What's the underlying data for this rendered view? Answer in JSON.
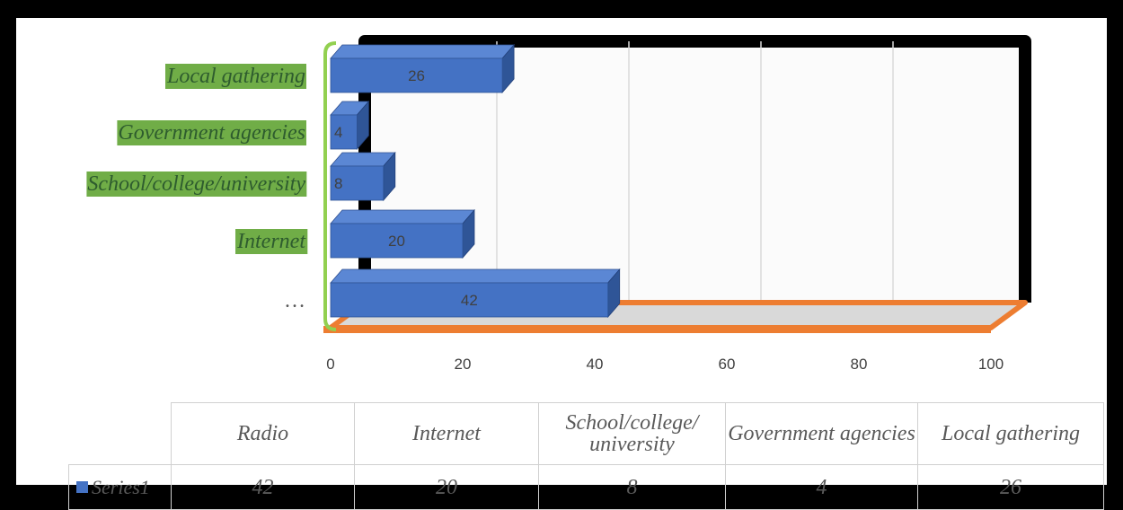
{
  "chart_data": {
    "type": "bar",
    "orientation": "horizontal",
    "title": "",
    "categories": [
      "Radio",
      "Internet",
      "School/college/ university",
      "Government agencies",
      "Local gathering"
    ],
    "axis_categories": [
      "…",
      "Internet",
      "School/college/university",
      "Government agencies",
      "Local gathering"
    ],
    "series": [
      {
        "name": "Series1",
        "values": [
          42,
          20,
          8,
          4,
          26
        ],
        "color": "#4472c4"
      }
    ],
    "xlim": [
      0,
      100
    ],
    "x_ticks": [
      "0",
      "20",
      "40",
      "60",
      "80",
      "100"
    ],
    "grid": true,
    "legend": "data-table",
    "data_table": {
      "headers": [
        "Radio",
        "Internet",
        "School/college/ university",
        "Government agencies",
        "Local gathering"
      ],
      "row_label": "Series1",
      "values": [
        "42",
        "20",
        "8",
        "4",
        "26"
      ]
    },
    "colors": {
      "bar": "#4472c4",
      "bar_top": "#5b87d4",
      "bar_side": "#2f5597",
      "back_wall_border": "#000000",
      "floor": "#ed7d31",
      "label_highlight": "#70ad47",
      "brace": "#92d050"
    }
  }
}
